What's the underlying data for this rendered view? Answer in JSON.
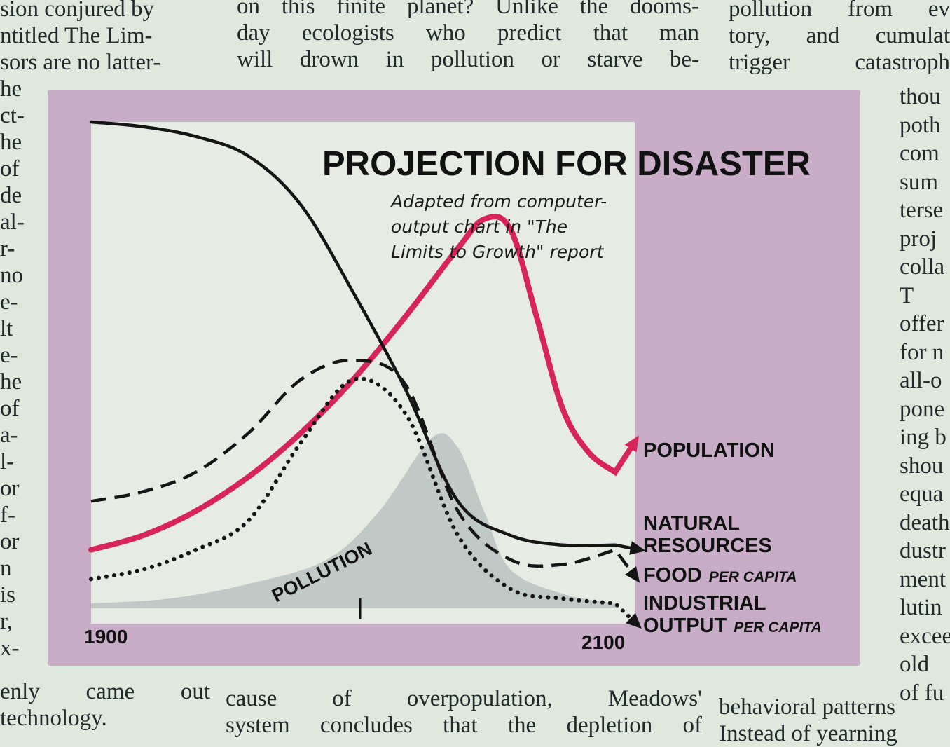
{
  "article": {
    "left_lines": [
      "sion conjured by",
      "ntitled The Lim-",
      "sors are no latter-",
      "he",
      "ct-",
      "he",
      "of",
      "de",
      "al-",
      "r-",
      "no",
      "e-",
      "lt",
      "e-",
      "he",
      "of",
      "a-",
      "l-",
      "or",
      "f-",
      "or",
      "n",
      "is",
      "r,",
      "x-"
    ],
    "left_bottom": [
      "enly came out",
      "technology."
    ],
    "mid_lines": [
      "on this finite planet? Unlike the dooms-",
      "day ecologists who predict that man",
      "will drown in pollution or starve be-"
    ],
    "mid_bottom": [
      "cause of overpopulation, Meadows'",
      "system concludes that the depletion of"
    ],
    "right_lines": [
      "pollution from ev",
      "tory, and cumulat",
      "trigger catastroph"
    ],
    "right_narrow": [
      "thou",
      "poth",
      "com",
      "sum",
      "terse",
      "proj",
      "colla",
      "T",
      "offer",
      "for n",
      "all-o",
      "pone",
      "ing b",
      "shou",
      "equa",
      "death",
      "dustr",
      "ment",
      "lutin",
      "excee",
      "old",
      "of fu"
    ],
    "right_bottom": [
      "behavioral patterns",
      "Instead of yearning"
    ]
  },
  "chart_data": {
    "type": "line",
    "title": "PROJECTION FOR DISASTER",
    "subtitle": [
      "Adapted from computer-",
      "output chart in \"The",
      "Limits to Growth\" report"
    ],
    "x_labels": {
      "start": "1900",
      "end": "2100"
    },
    "xlim": [
      1900,
      2100
    ],
    "ylim": [
      0,
      1
    ],
    "grid": false,
    "colors": {
      "population": "#d8245a",
      "curves": "#151515",
      "pollution_fill": "#b9c3bf",
      "frame": "#c8acc8",
      "plot_bg": "#e6ece4"
    },
    "series": [
      {
        "name": "POPULATION",
        "name_suffix": "",
        "style": "solid-red",
        "x": [
          1900,
          1920,
          1940,
          1960,
          1980,
          2000,
          2020,
          2040,
          2050,
          2060,
          2070,
          2080,
          2090,
          2100
        ],
        "y": [
          0.12,
          0.15,
          0.2,
          0.27,
          0.36,
          0.47,
          0.6,
          0.74,
          0.8,
          0.78,
          0.6,
          0.41,
          0.32,
          0.28
        ]
      },
      {
        "name": "NATURAL",
        "name_line2": "RESOURCES",
        "name_suffix": "",
        "style": "solid-black",
        "x": [
          1900,
          1920,
          1940,
          1960,
          1980,
          2000,
          2020,
          2040,
          2060,
          2080,
          2100
        ],
        "y": [
          1.0,
          0.99,
          0.97,
          0.93,
          0.83,
          0.65,
          0.45,
          0.22,
          0.15,
          0.13,
          0.13
        ]
      },
      {
        "name": "FOOD",
        "name_suffix": "PER CAPITA",
        "style": "dashed",
        "x": [
          1900,
          1920,
          1940,
          1960,
          1980,
          2000,
          2020,
          2040,
          2060,
          2080,
          2100
        ],
        "y": [
          0.22,
          0.24,
          0.28,
          0.36,
          0.47,
          0.51,
          0.46,
          0.2,
          0.1,
          0.09,
          0.12
        ]
      },
      {
        "name": "INDUSTRIAL",
        "name_line2": "OUTPUT",
        "name_suffix": "PER CAPITA",
        "style": "dotted",
        "x": [
          1900,
          1920,
          1940,
          1960,
          1980,
          2000,
          2020,
          2040,
          2060,
          2080,
          2100
        ],
        "y": [
          0.06,
          0.08,
          0.12,
          0.18,
          0.34,
          0.47,
          0.4,
          0.15,
          0.04,
          0.02,
          0.01
        ]
      },
      {
        "name": "POLLUTION",
        "name_suffix": "",
        "style": "area-grey",
        "x": [
          1900,
          1930,
          1960,
          1990,
          2010,
          2030,
          2040,
          2050,
          2060,
          2080,
          2100
        ],
        "y": [
          0.01,
          0.02,
          0.05,
          0.1,
          0.2,
          0.35,
          0.33,
          0.2,
          0.08,
          0.03,
          0.01
        ]
      }
    ]
  }
}
